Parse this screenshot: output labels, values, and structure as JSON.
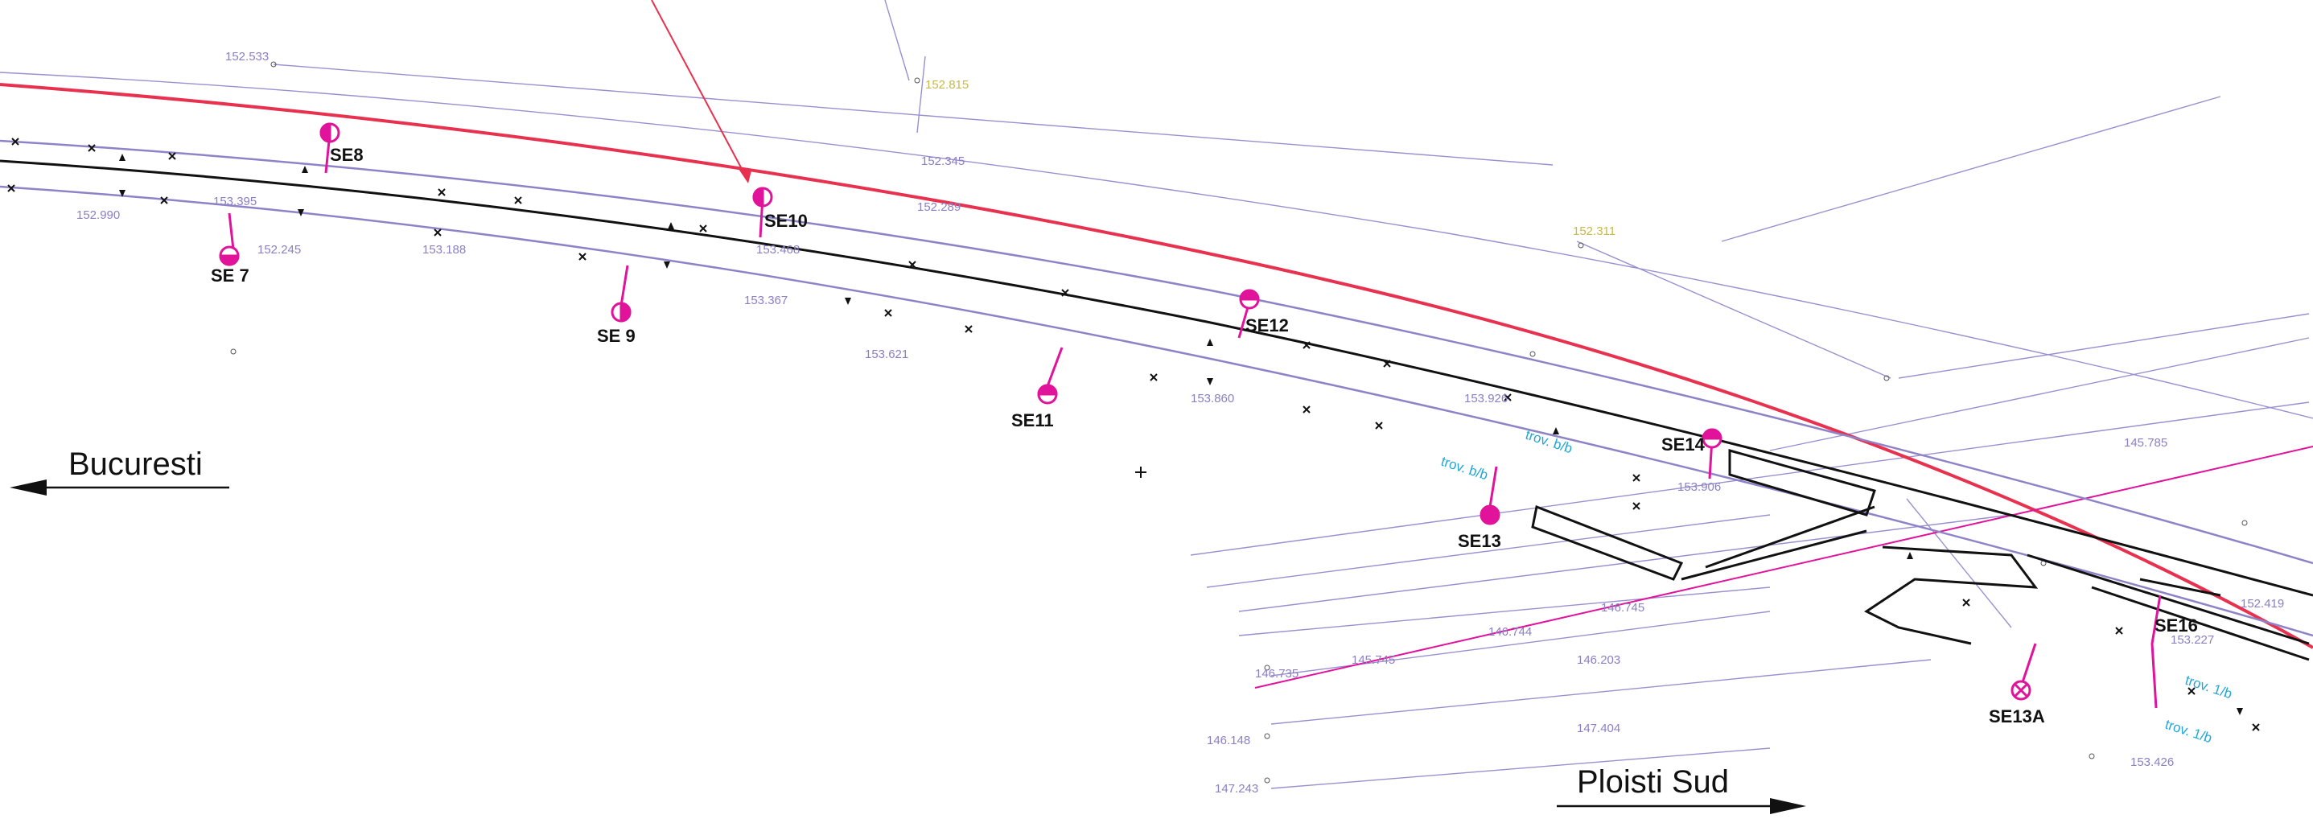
{
  "directions": {
    "left": "Bucuresti",
    "right": "Ploisti   Sud"
  },
  "stations": [
    "SE 7",
    "SE8",
    "SE 9",
    "SE10",
    "SE11",
    "SE12",
    "SE13",
    "SE14",
    "SE16",
    "SE13A"
  ],
  "elevations": [
    "152.533",
    "152.815",
    "152.345",
    "152.289",
    "152.311",
    "152.245",
    "153.188",
    "153.395",
    "153.468",
    "153.367",
    "153.621",
    "153.860",
    "153.926",
    "153.906",
    "153.227",
    "152.419",
    "153.426",
    "146.745",
    "146.744",
    "146.735",
    "146.203",
    "147.404",
    "147.243",
    "146.148",
    "145.745",
    "145.785",
    "152.990"
  ],
  "annotations": [
    "trov. b/b",
    "trov. b/b",
    "trov. 1/b",
    "trov. 1/b"
  ],
  "colors": {
    "border": "#e8314f",
    "survey": "#e0139a",
    "track": "#111111",
    "grid": "#9a90cf",
    "label_blue": "#22a7d6"
  }
}
